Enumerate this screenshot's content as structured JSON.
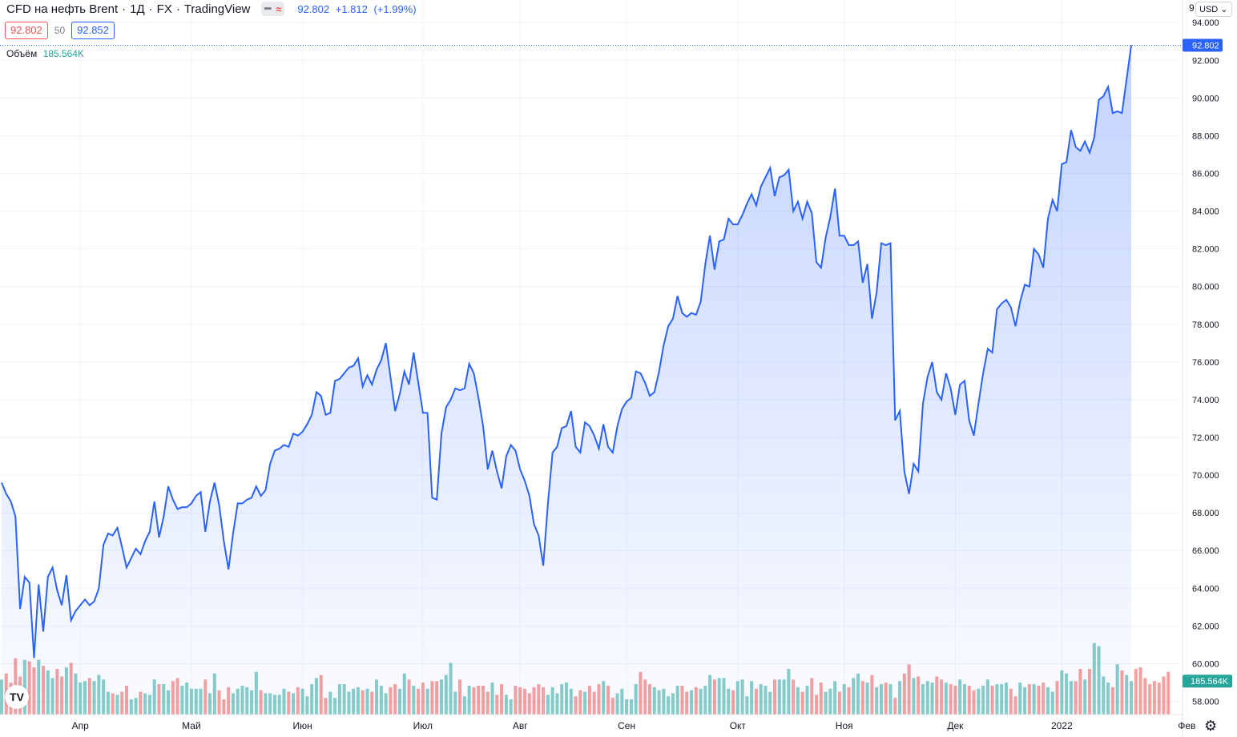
{
  "header": {
    "title": "CFD на нефть Brent",
    "interval": "1Д",
    "exchange": "FX",
    "source": "TradingView",
    "pill_left": "━",
    "pill_right": "≈",
    "price": "92.802",
    "change": "+1.812",
    "change_pct": "(+1.99%)"
  },
  "quote": {
    "bid": "92.802",
    "spread": "50",
    "ask": "92.852"
  },
  "volume": {
    "label": "Объём",
    "value": "185.564K"
  },
  "axis_right": {
    "currency": "USD",
    "cut_label": "9",
    "last_price_label": "92.802",
    "last_volume_label": "185.564K"
  },
  "colors": {
    "line": "#2962ff",
    "area": "#2962ff",
    "vol_up": "#26a69a",
    "vol_down": "#ef5350",
    "grid": "#f0f3fa"
  },
  "icons": {
    "logo": "tradingview-logo-icon",
    "settings": "gear-icon",
    "dropdown": "chevron-down-icon"
  },
  "chart_data": {
    "type": "area",
    "y_ticks": [
      "94.000",
      "92.000",
      "90.000",
      "88.000",
      "86.000",
      "84.000",
      "82.000",
      "80.000",
      "78.000",
      "76.000",
      "74.000",
      "72.000",
      "70.000",
      "68.000",
      "66.000",
      "64.000",
      "62.000",
      "60.000",
      "58.000"
    ],
    "x_ticks": [
      "Апр",
      "Май",
      "Июн",
      "Июл",
      "Авг",
      "Сен",
      "Окт",
      "Ноя",
      "Дек",
      "2022",
      "Фев"
    ],
    "ylim": [
      57.3,
      95.2
    ],
    "grid": true,
    "price": [
      69.6,
      69.0,
      68.6,
      67.8,
      62.9,
      64.6,
      64.3,
      60.3,
      64.2,
      61.7,
      64.6,
      65.1,
      63.9,
      63.1,
      64.7,
      62.3,
      62.8,
      63.1,
      63.4,
      63.1,
      63.3,
      64.0,
      66.3,
      66.9,
      66.8,
      67.2,
      66.2,
      65.1,
      65.6,
      66.1,
      65.8,
      66.5,
      67.0,
      68.6,
      66.7,
      67.8,
      69.4,
      68.7,
      68.2,
      68.3,
      68.3,
      68.5,
      68.9,
      69.1,
      67.0,
      68.6,
      69.6,
      68.4,
      66.5,
      65.0,
      66.9,
      68.5,
      68.5,
      68.7,
      68.8,
      69.4,
      68.9,
      69.2,
      70.6,
      71.3,
      71.4,
      71.6,
      71.5,
      72.2,
      72.1,
      72.3,
      72.7,
      73.2,
      74.4,
      74.2,
      73.2,
      73.3,
      75.0,
      75.1,
      75.4,
      75.7,
      75.8,
      76.2,
      74.7,
      75.3,
      74.8,
      75.6,
      76.1,
      77.0,
      75.2,
      73.4,
      74.3,
      75.5,
      74.8,
      76.5,
      74.9,
      73.3,
      73.3,
      68.8,
      68.7,
      72.2,
      73.6,
      74.0,
      74.6,
      74.5,
      74.6,
      75.9,
      75.4,
      74.1,
      72.6,
      70.3,
      71.3,
      70.2,
      69.3,
      71.0,
      71.6,
      71.3,
      70.3,
      69.7,
      68.9,
      67.4,
      66.8,
      65.2,
      68.5,
      71.2,
      71.5,
      72.5,
      72.6,
      73.4,
      71.5,
      71.2,
      72.8,
      72.6,
      72.1,
      71.4,
      72.7,
      71.5,
      71.2,
      72.6,
      73.5,
      73.9,
      74.1,
      75.5,
      75.4,
      74.9,
      74.2,
      74.4,
      75.5,
      76.9,
      77.9,
      78.3,
      79.5,
      78.6,
      78.4,
      78.6,
      78.5,
      79.2,
      81.2,
      82.7,
      80.9,
      82.4,
      82.5,
      83.6,
      83.3,
      83.3,
      83.8,
      84.4,
      84.9,
      84.3,
      85.3,
      85.8,
      86.3,
      84.8,
      85.8,
      85.9,
      86.2,
      84.0,
      84.5,
      83.6,
      84.5,
      83.9,
      81.3,
      81.0,
      82.6,
      83.7,
      85.2,
      82.7,
      82.7,
      82.2,
      82.2,
      82.4,
      80.2,
      81.2,
      78.3,
      79.7,
      82.3,
      82.2,
      82.3,
      72.9,
      73.4,
      70.2,
      69.0,
      70.6,
      70.2,
      73.8,
      75.2,
      76.0,
      74.4,
      74.0,
      75.4,
      74.6,
      73.2,
      74.8,
      75.0,
      72.9,
      72.1,
      73.8,
      75.4,
      76.7,
      76.5,
      78.8,
      79.1,
      79.3,
      78.9,
      77.9,
      79.2,
      80.1,
      80.0,
      82.0,
      81.7,
      81.0,
      83.6,
      84.6,
      84.0,
      86.5,
      86.6,
      88.3,
      87.4,
      87.2,
      87.7,
      87.1,
      87.9,
      89.9,
      90.1,
      90.6,
      89.2,
      89.3,
      89.2,
      91.0,
      92.8
    ],
    "volume": [
      0.23,
      0.27,
      0.21,
      0.37,
      0.25,
      0.36,
      0.35,
      0.31,
      0.36,
      0.32,
      0.29,
      0.24,
      0.3,
      0.25,
      0.31,
      0.34,
      0.27,
      0.21,
      0.22,
      0.24,
      0.22,
      0.26,
      0.23,
      0.15,
      0.14,
      0.13,
      0.15,
      0.19,
      0.1,
      0.11,
      0.15,
      0.14,
      0.13,
      0.23,
      0.2,
      0.2,
      0.16,
      0.22,
      0.24,
      0.19,
      0.21,
      0.17,
      0.17,
      0.17,
      0.23,
      0.14,
      0.27,
      0.16,
      0.1,
      0.18,
      0.14,
      0.17,
      0.19,
      0.18,
      0.16,
      0.28,
      0.16,
      0.14,
      0.14,
      0.13,
      0.13,
      0.17,
      0.15,
      0.14,
      0.18,
      0.17,
      0.12,
      0.2,
      0.24,
      0.26,
      0.11,
      0.15,
      0.11,
      0.2,
      0.2,
      0.15,
      0.17,
      0.18,
      0.16,
      0.17,
      0.15,
      0.23,
      0.19,
      0.14,
      0.18,
      0.2,
      0.17,
      0.27,
      0.23,
      0.19,
      0.17,
      0.21,
      0.17,
      0.22,
      0.22,
      0.23,
      0.26,
      0.34,
      0.15,
      0.23,
      0.12,
      0.19,
      0.18,
      0.19,
      0.19,
      0.15,
      0.21,
      0.13,
      0.2,
      0.13,
      0.1,
      0.19,
      0.18,
      0.17,
      0.14,
      0.18,
      0.2,
      0.18,
      0.13,
      0.18,
      0.14,
      0.2,
      0.21,
      0.17,
      0.12,
      0.16,
      0.15,
      0.19,
      0.15,
      0.2,
      0.22,
      0.19,
      0.11,
      0.14,
      0.17,
      0.1,
      0.1,
      0.2,
      0.28,
      0.23,
      0.2,
      0.18,
      0.16,
      0.17,
      0.12,
      0.14,
      0.19,
      0.19,
      0.15,
      0.16,
      0.18,
      0.17,
      0.19,
      0.26,
      0.23,
      0.24,
      0.24,
      0.17,
      0.16,
      0.22,
      0.23,
      0.12,
      0.22,
      0.17,
      0.2,
      0.19,
      0.15,
      0.23,
      0.23,
      0.23,
      0.3,
      0.23,
      0.18,
      0.15,
      0.19,
      0.24,
      0.13,
      0.21,
      0.15,
      0.17,
      0.22,
      0.15,
      0.2,
      0.18,
      0.24,
      0.27,
      0.22,
      0.21,
      0.26,
      0.18,
      0.2,
      0.21,
      0.2,
      0.11,
      0.22,
      0.27,
      0.33,
      0.24,
      0.25,
      0.2,
      0.22,
      0.21,
      0.25,
      0.23,
      0.21,
      0.2,
      0.19,
      0.23,
      0.2,
      0.19,
      0.16,
      0.17,
      0.19,
      0.23,
      0.19,
      0.2,
      0.2,
      0.21,
      0.17,
      0.12,
      0.21,
      0.18,
      0.2,
      0.2,
      0.19,
      0.21,
      0.18,
      0.15,
      0.22,
      0.29,
      0.27,
      0.22,
      0.22,
      0.3,
      0.23,
      0.3,
      0.47,
      0.45,
      0.25,
      0.21,
      0.18,
      0.33,
      0.29,
      0.26,
      0.22,
      0.3,
      0.31,
      0.24,
      0.2,
      0.22,
      0.21,
      0.25,
      0.28
    ]
  }
}
